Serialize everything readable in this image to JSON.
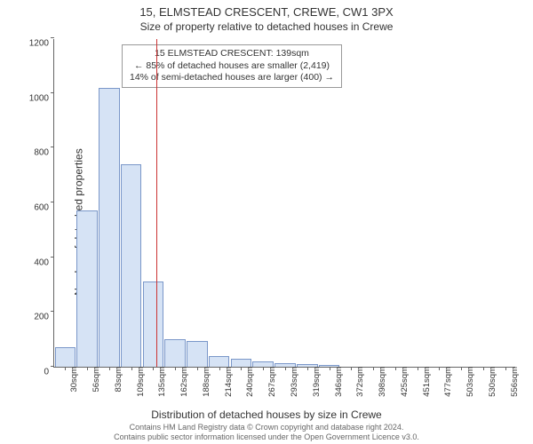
{
  "chart": {
    "type": "histogram",
    "title_main": "15, ELMSTEAD CRESCENT, CREWE, CW1 3PX",
    "title_sub": "Size of property relative to detached houses in Crewe",
    "ylabel": "Number of detached properties",
    "xlabel": "Distribution of detached houses by size in Crewe",
    "attribution_line1": "Contains HM Land Registry data © Crown copyright and database right 2024.",
    "attribution_line2": "Contains public sector information licensed under the Open Government Licence v3.0.",
    "background_color": "#ffffff",
    "axis_color": "#666666",
    "ylim": [
      0,
      1200
    ],
    "yticks": [
      0,
      200,
      400,
      600,
      800,
      1000,
      1200
    ],
    "xticks": [
      "30sqm",
      "56sqm",
      "83sqm",
      "109sqm",
      "135sqm",
      "162sqm",
      "188sqm",
      "214sqm",
      "240sqm",
      "267sqm",
      "293sqm",
      "319sqm",
      "346sqm",
      "372sqm",
      "398sqm",
      "425sqm",
      "451sqm",
      "477sqm",
      "503sqm",
      "530sqm",
      "556sqm"
    ],
    "bars": {
      "values": [
        70,
        570,
        1020,
        740,
        310,
        100,
        95,
        40,
        30,
        20,
        12,
        10,
        8,
        0,
        0,
        0,
        0,
        0,
        0,
        0,
        0
      ],
      "fill_color": "#d6e3f5",
      "border_color": "#7a97c9",
      "width_frac": 0.95
    },
    "reference_line": {
      "position_index": 4.15,
      "color": "#cc3333"
    },
    "annotation": {
      "line1": "15 ELMSTEAD CRESCENT: 139sqm",
      "line2": "← 85% of detached houses are smaller (2,419)",
      "line3": "14% of semi-detached houses are larger (400) →"
    },
    "title_fontsize": 13,
    "subtitle_fontsize": 12,
    "label_fontsize": 12,
    "tick_fontsize": 10,
    "annotation_fontsize": 10.5,
    "attribution_fontsize": 9
  }
}
